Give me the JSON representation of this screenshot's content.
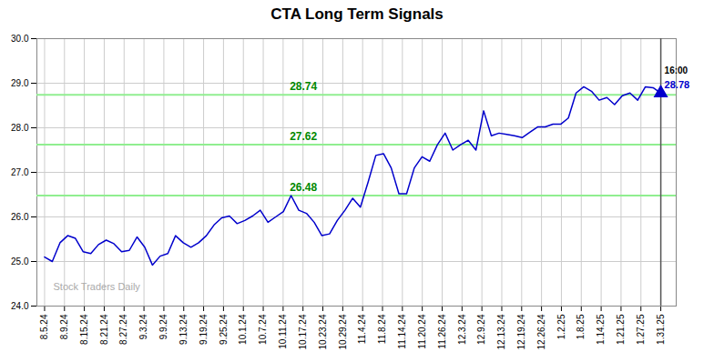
{
  "chart_data": {
    "type": "line",
    "title": "CTA Long Term Signals",
    "color": "#0000cc",
    "values": [
      25.1,
      25.0,
      25.42,
      25.58,
      25.52,
      25.22,
      25.18,
      25.38,
      25.48,
      25.4,
      25.22,
      25.25,
      25.55,
      25.32,
      24.92,
      25.12,
      25.18,
      25.58,
      25.42,
      25.32,
      25.42,
      25.58,
      25.82,
      25.98,
      26.02,
      25.85,
      25.92,
      26.02,
      26.15,
      25.88,
      26.0,
      26.12,
      26.48,
      26.15,
      26.08,
      25.88,
      25.58,
      25.62,
      25.92,
      26.15,
      26.42,
      26.22,
      26.78,
      27.38,
      27.42,
      27.1,
      26.52,
      26.52,
      27.1,
      27.35,
      27.25,
      27.62,
      27.88,
      27.5,
      27.62,
      27.72,
      27.5,
      28.38,
      27.82,
      27.88,
      27.85,
      27.82,
      27.78,
      27.9,
      28.02,
      28.02,
      28.08,
      28.08,
      28.22,
      28.78,
      28.92,
      28.82,
      28.62,
      28.68,
      28.52,
      28.72,
      28.78,
      28.62,
      28.92,
      28.9,
      28.78
    ],
    "xlim": [
      -1,
      82
    ],
    "xticks": [
      {
        "value": 0,
        "label": "8.5.24"
      },
      {
        "value": 2.5806,
        "label": "8.9.24"
      },
      {
        "value": 5.1613,
        "label": "8.15.24"
      },
      {
        "value": 7.7419,
        "label": "8.21.24"
      },
      {
        "value": 10.3226,
        "label": "8.27.24"
      },
      {
        "value": 12.9032,
        "label": "9.3.24"
      },
      {
        "value": 15.4839,
        "label": "9.9.24"
      },
      {
        "value": 18.0645,
        "label": "9.13.24"
      },
      {
        "value": 20.6452,
        "label": "9.19.24"
      },
      {
        "value": 23.2258,
        "label": "9.25.24"
      },
      {
        "value": 25.8065,
        "label": "10.1.24"
      },
      {
        "value": 28.3871,
        "label": "10.7.24"
      },
      {
        "value": 30.9677,
        "label": "10.11.24"
      },
      {
        "value": 33.5484,
        "label": "10.17.24"
      },
      {
        "value": 36.129,
        "label": "10.23.24"
      },
      {
        "value": 38.7097,
        "label": "10.29.24"
      },
      {
        "value": 41.2903,
        "label": "11.4.24"
      },
      {
        "value": 43.871,
        "label": "11.8.24"
      },
      {
        "value": 46.4516,
        "label": "11.14.24"
      },
      {
        "value": 49.0323,
        "label": "11.20.24"
      },
      {
        "value": 51.6129,
        "label": "11.26.24"
      },
      {
        "value": 54.1935,
        "label": "12.3.24"
      },
      {
        "value": 56.7742,
        "label": "12.9.24"
      },
      {
        "value": 59.3548,
        "label": "12.13.24"
      },
      {
        "value": 61.9355,
        "label": "12.19.24"
      },
      {
        "value": 64.5161,
        "label": "12.26.24"
      },
      {
        "value": 67.0968,
        "label": "1.2.25"
      },
      {
        "value": 69.6774,
        "label": "1.8.25"
      },
      {
        "value": 72.2581,
        "label": "1.14.25"
      },
      {
        "value": 74.8387,
        "label": "1.21.25"
      },
      {
        "value": 77.4194,
        "label": "1.27.25"
      },
      {
        "value": 80,
        "label": "1.31.25"
      }
    ],
    "ylim": [
      24,
      30
    ],
    "yticks": [
      24,
      25,
      26,
      27,
      28,
      29,
      30
    ],
    "grid": true,
    "hlines": [
      {
        "value": 26.48,
        "label": "26.48"
      },
      {
        "value": 27.62,
        "label": "27.62"
      },
      {
        "value": 28.74,
        "label": "28.74"
      }
    ],
    "hline_color": "#90ee90",
    "hline_label_color": "#008800",
    "endpoint": {
      "value": 28.78,
      "label": "28.78",
      "time_label": "16:00",
      "marker": "triangle"
    },
    "watermark": "Stock Traders Daily",
    "watermark_color": "#aaaaaa"
  }
}
